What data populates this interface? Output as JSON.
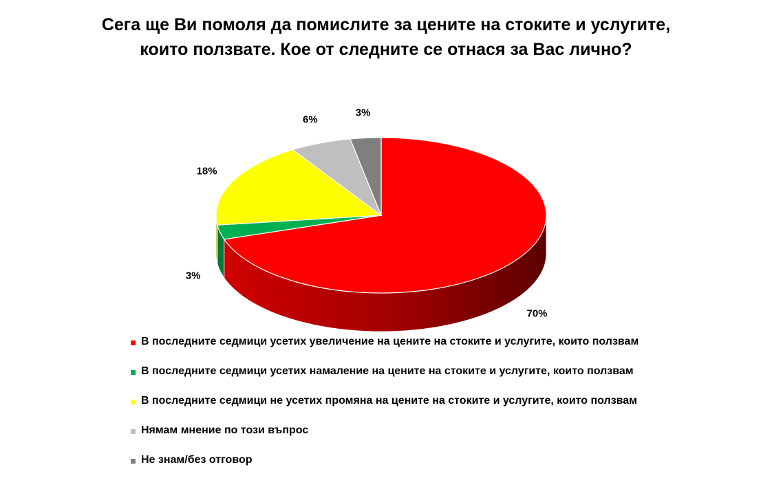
{
  "chart_data": {
    "type": "pie",
    "title_lines": [
      "Сега ще Ви помоля да помислите за цените на стоките и услугите,",
      "които ползвате. Кое от следните се отнася за Вас лично?"
    ],
    "slices": [
      {
        "name": "В последните седмици усетих увеличение на цените на стоките и услугите, които ползвам",
        "value": 70,
        "label": "70%",
        "color": "#ff0000",
        "side_color": "#b30000"
      },
      {
        "name": "В последните седмици усетих намаление на цените на стоките и услугите, които ползвам",
        "value": 3,
        "label": "3%",
        "color": "#00b050",
        "side_color": "#007a38"
      },
      {
        "name": "В последните седмици не усетих промяна на цените на стоките и услугите, които ползвам",
        "value": 18,
        "label": "18%",
        "color": "#ffff00",
        "side_color": "#b3b300"
      },
      {
        "name": "Нямам мнение по този въпрос",
        "value": 6,
        "label": "6%",
        "color": "#bfbfbf",
        "side_color": "#8a8a8a"
      },
      {
        "name": "Не знам/без отговор",
        "value": 3,
        "label": "3%",
        "color": "#7f7f7f",
        "side_color": "#555555"
      }
    ],
    "legend_position": "bottom"
  }
}
